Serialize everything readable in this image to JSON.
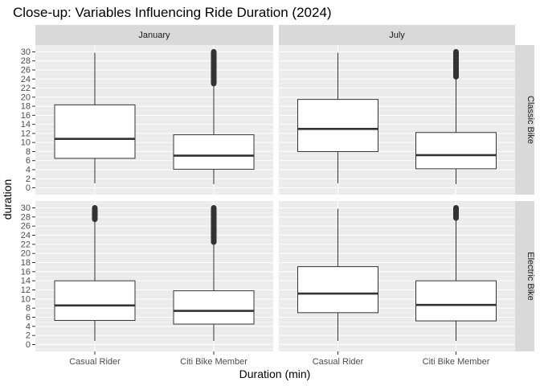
{
  "chart_data": {
    "type": "boxplot",
    "title": "Close-up: Variables Influencing Ride Duration (2024)",
    "xlabel": "Duration (min)",
    "ylabel": "duration",
    "ylim": [
      -1.5,
      31.5
    ],
    "yticks": [
      0,
      2,
      4,
      6,
      8,
      10,
      12,
      14,
      16,
      18,
      20,
      22,
      24,
      26,
      28,
      30
    ],
    "categories": [
      "Casual Rider",
      "Citi Bike Member"
    ],
    "facet_columns": [
      "January",
      "July"
    ],
    "facet_rows": [
      "Classic Bike",
      "Electric Bike"
    ],
    "grid": true,
    "panels": [
      {
        "month": "January",
        "bike": "Classic Bike",
        "boxes": [
          {
            "category": "Casual Rider",
            "min": 1.0,
            "q1": 6.5,
            "median": 10.8,
            "q3": 18.3,
            "max": 29.8,
            "outlier_range": null
          },
          {
            "category": "Citi Bike Member",
            "min": 0.8,
            "q1": 4.1,
            "median": 7.1,
            "q3": 11.7,
            "max": 23.0,
            "outlier_range": [
              23.0,
              30.0
            ]
          }
        ]
      },
      {
        "month": "July",
        "bike": "Classic Bike",
        "boxes": [
          {
            "category": "Casual Rider",
            "min": 1.0,
            "q1": 8.0,
            "median": 13.0,
            "q3": 19.5,
            "max": 29.8,
            "outlier_range": null
          },
          {
            "category": "Citi Bike Member",
            "min": 0.8,
            "q1": 4.2,
            "median": 7.2,
            "q3": 12.2,
            "max": 24.5,
            "outlier_range": [
              24.5,
              30.0
            ]
          }
        ]
      },
      {
        "month": "January",
        "bike": "Electric Bike",
        "boxes": [
          {
            "category": "Casual Rider",
            "min": 0.8,
            "q1": 5.3,
            "median": 8.6,
            "q3": 14.0,
            "max": 27.5,
            "outlier_range": [
              27.5,
              30.0
            ]
          },
          {
            "category": "Citi Bike Member",
            "min": 0.8,
            "q1": 4.5,
            "median": 7.4,
            "q3": 11.8,
            "max": 22.5,
            "outlier_range": [
              22.5,
              30.0
            ]
          }
        ]
      },
      {
        "month": "July",
        "bike": "Electric Bike",
        "boxes": [
          {
            "category": "Casual Rider",
            "min": 0.8,
            "q1": 7.0,
            "median": 11.2,
            "q3": 17.1,
            "max": 29.8,
            "outlier_range": null
          },
          {
            "category": "Citi Bike Member",
            "min": 0.8,
            "q1": 5.2,
            "median": 8.7,
            "q3": 14.0,
            "max": 27.8,
            "outlier_range": [
              27.8,
              30.0
            ]
          }
        ]
      }
    ]
  }
}
